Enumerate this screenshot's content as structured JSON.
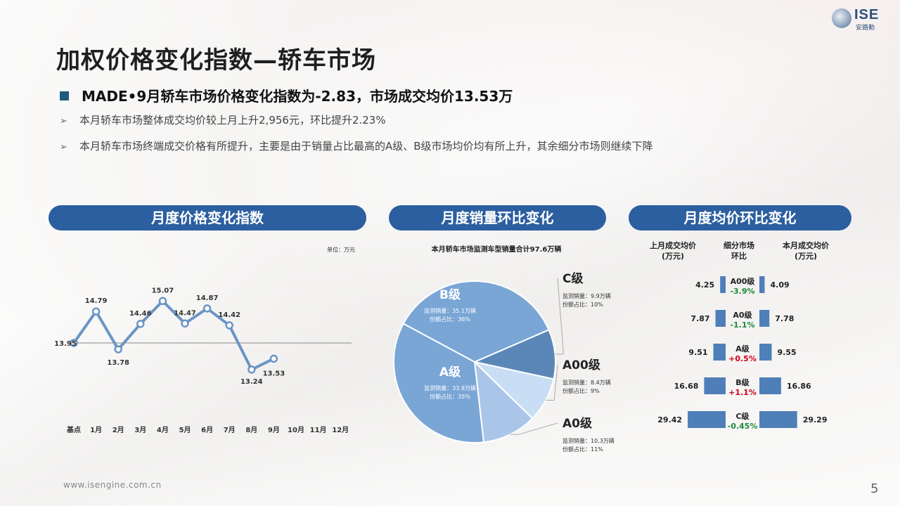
{
  "logo": {
    "name": "ISE",
    "sub": "安路勤"
  },
  "title": "加权价格变化指数—轿车市场",
  "headline": "MADE•9月轿车市场价格变化指数为-2.83，市场成交均价13.53万",
  "bullets": [
    "本月轿车市场整体成交均价较上月上升2,956元，环比提升2.23%",
    "本月轿车市场终端成交价格有所提升，主要是由于销量占比最高的A级、B级市场均价均有所上升，其余细分市场则继续下降"
  ],
  "panels": {
    "left": "月度价格变化指数",
    "middle": "月度销量环比变化",
    "right": "月度均价环比变化"
  },
  "footer": {
    "url": "www.isengine.com.cn",
    "page": "5"
  },
  "colors": {
    "accent": "#2c5fa0",
    "line": "#5b8cc0",
    "pie_dark": "#5b87b8",
    "pie_mid": "#7aa6d6",
    "pie_light": "#c9def5",
    "bar": "#4f7fb8",
    "down": "#1f8a3a",
    "up": "#d0021b"
  },
  "chart_data": [
    {
      "type": "line",
      "unit": "单位：万元",
      "categories": [
        "基点",
        "1月",
        "2月",
        "3月",
        "4月",
        "5月",
        "6月",
        "7月",
        "8月",
        "9月",
        "10月",
        "11月",
        "12月"
      ],
      "values": [
        13.95,
        14.79,
        13.78,
        14.46,
        15.07,
        14.47,
        14.87,
        14.42,
        13.24,
        13.53,
        null,
        null,
        null
      ],
      "labels": [
        "13.95",
        "14.79",
        "13.78",
        "14.46",
        "15.07",
        "14.47",
        "14.87",
        "14.42",
        "13.24",
        "13.53"
      ],
      "baseline": 13.95,
      "ylim": [
        12.6,
        15.6
      ]
    },
    {
      "type": "pie",
      "title": "本月轿车市场监测车型销量合计97.6万辆",
      "slices": [
        {
          "name": "C级",
          "sales_label": "监测销量：9.9万辆",
          "share_label": "份额占比：10%",
          "value": 10
        },
        {
          "name": "A00级",
          "sales_label": "监测销量：8.4万辆",
          "share_label": "份额占比：9%",
          "value": 9
        },
        {
          "name": "A0级",
          "sales_label": "监测销量：10.3万辆",
          "share_label": "份额占比：11%",
          "value": 11
        },
        {
          "name": "A级",
          "sales_label": "监测销量：33.9万辆",
          "share_label": "份额占比：35%",
          "value": 35
        },
        {
          "name": "B级",
          "sales_label": "监测销量：35.1万辆",
          "share_label": "份额占比：36%",
          "value": 36
        }
      ]
    },
    {
      "type": "bar",
      "headers": {
        "prev": "上月成交均价(万元)",
        "seg": "细分市场环比",
        "curr": "本月成交均价(万元)"
      },
      "rows": [
        {
          "segment": "A00级",
          "prev": 4.25,
          "curr": 4.09,
          "change": "-3.9%",
          "dir": "down"
        },
        {
          "segment": "A0级",
          "prev": 7.87,
          "curr": 7.78,
          "change": "-1.1%",
          "dir": "down"
        },
        {
          "segment": "A级",
          "prev": 9.51,
          "curr": 9.55,
          "change": "+0.5%",
          "dir": "up"
        },
        {
          "segment": "B级",
          "prev": 16.68,
          "curr": 16.86,
          "change": "+1.1%",
          "dir": "up"
        },
        {
          "segment": "C级",
          "prev": 29.42,
          "curr": 29.29,
          "change": "-0.45%",
          "dir": "down"
        }
      ]
    }
  ]
}
